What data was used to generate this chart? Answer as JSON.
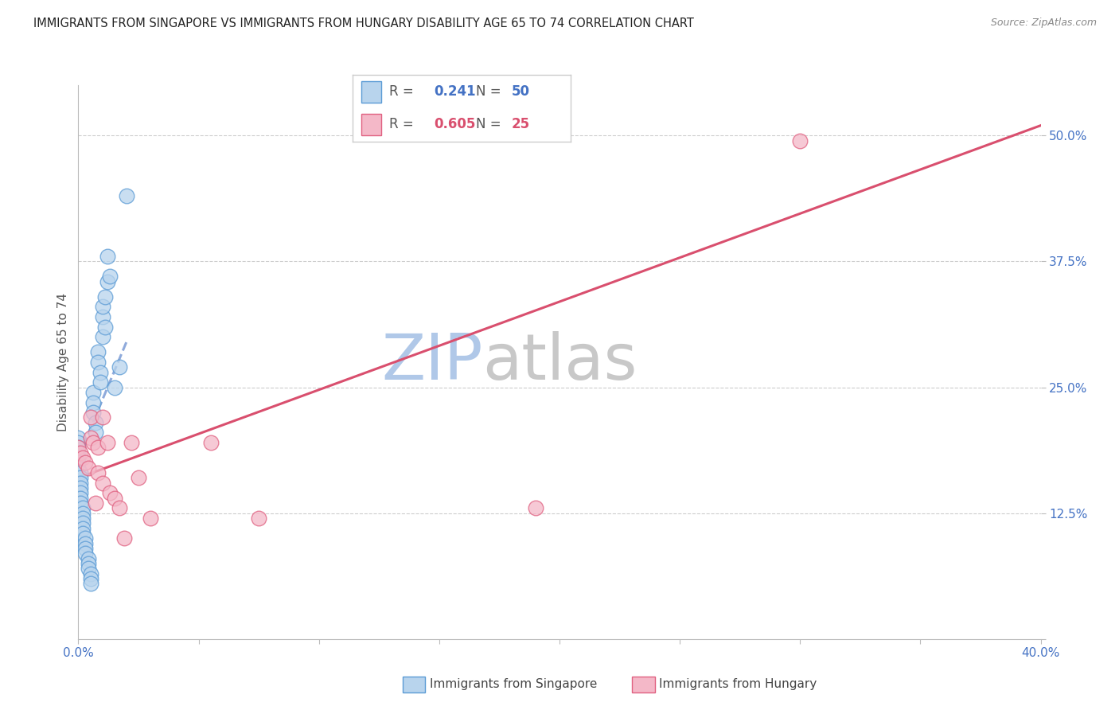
{
  "title": "IMMIGRANTS FROM SINGAPORE VS IMMIGRANTS FROM HUNGARY DISABILITY AGE 65 TO 74 CORRELATION CHART",
  "source": "Source: ZipAtlas.com",
  "ylabel": "Disability Age 65 to 74",
  "xlim": [
    0.0,
    0.4
  ],
  "ylim": [
    0.0,
    0.55
  ],
  "xticks": [
    0.0,
    0.05,
    0.1,
    0.15,
    0.2,
    0.25,
    0.3,
    0.35,
    0.4
  ],
  "xticklabels": [
    "0.0%",
    "",
    "",
    "",
    "",
    "",
    "",
    "",
    "40.0%"
  ],
  "yticks": [
    0.0,
    0.125,
    0.25,
    0.375,
    0.5
  ],
  "yticklabels": [
    "",
    "12.5%",
    "25.0%",
    "37.5%",
    "50.0%"
  ],
  "singapore_R": 0.241,
  "singapore_N": 50,
  "hungary_R": 0.605,
  "hungary_N": 25,
  "sg_color_fill": "#b8d4ed",
  "sg_color_edge": "#5b9bd5",
  "hu_color_fill": "#f4b8c8",
  "hu_color_edge": "#e06080",
  "sg_line_color": "#4472c4",
  "hu_line_color": "#d94f6e",
  "watermark_zip_color": "#b0c8e8",
  "watermark_atlas_color": "#c8c8c8",
  "sg_x": [
    0.0,
    0.0,
    0.0,
    0.0,
    0.0,
    0.0,
    0.0,
    0.001,
    0.001,
    0.001,
    0.001,
    0.001,
    0.001,
    0.001,
    0.002,
    0.002,
    0.002,
    0.002,
    0.002,
    0.002,
    0.003,
    0.003,
    0.003,
    0.003,
    0.004,
    0.004,
    0.004,
    0.005,
    0.005,
    0.005,
    0.006,
    0.006,
    0.006,
    0.007,
    0.007,
    0.008,
    0.008,
    0.009,
    0.009,
    0.01,
    0.01,
    0.01,
    0.011,
    0.011,
    0.012,
    0.012,
    0.013,
    0.015,
    0.017,
    0.02
  ],
  "sg_y": [
    0.2,
    0.195,
    0.19,
    0.185,
    0.18,
    0.175,
    0.17,
    0.165,
    0.16,
    0.155,
    0.15,
    0.145,
    0.14,
    0.135,
    0.13,
    0.125,
    0.12,
    0.115,
    0.11,
    0.105,
    0.1,
    0.095,
    0.09,
    0.085,
    0.08,
    0.075,
    0.07,
    0.065,
    0.06,
    0.055,
    0.245,
    0.235,
    0.225,
    0.215,
    0.205,
    0.285,
    0.275,
    0.265,
    0.255,
    0.3,
    0.32,
    0.33,
    0.31,
    0.34,
    0.355,
    0.38,
    0.36,
    0.25,
    0.27,
    0.44
  ],
  "hu_x": [
    0.0,
    0.001,
    0.002,
    0.003,
    0.004,
    0.005,
    0.005,
    0.006,
    0.007,
    0.008,
    0.008,
    0.01,
    0.01,
    0.012,
    0.013,
    0.015,
    0.017,
    0.019,
    0.022,
    0.025,
    0.03,
    0.055,
    0.075,
    0.19,
    0.3
  ],
  "hu_y": [
    0.19,
    0.185,
    0.18,
    0.175,
    0.17,
    0.2,
    0.22,
    0.195,
    0.135,
    0.19,
    0.165,
    0.155,
    0.22,
    0.195,
    0.145,
    0.14,
    0.13,
    0.1,
    0.195,
    0.16,
    0.12,
    0.195,
    0.12,
    0.13,
    0.495
  ],
  "sg_line_x0": 0.0,
  "sg_line_x1": 0.02,
  "sg_line_y0": 0.18,
  "sg_line_y1": 0.295,
  "hu_line_x0": 0.0,
  "hu_line_x1": 0.4,
  "hu_line_y0": 0.16,
  "hu_line_y1": 0.51
}
